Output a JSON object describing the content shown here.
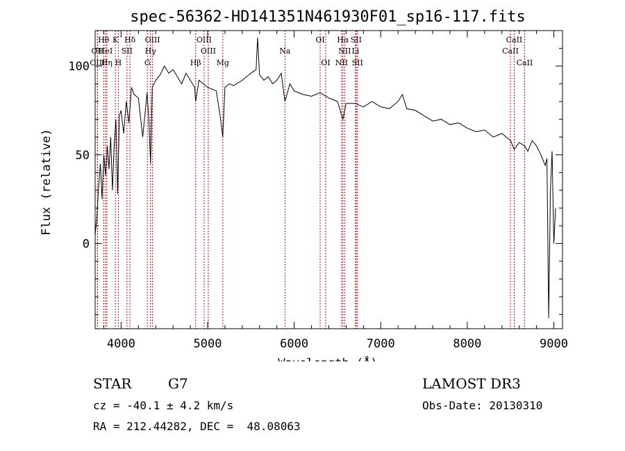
{
  "chart_data": {
    "type": "line",
    "title": "spec-56362-HD141351N461930F01_sp16-117.fits",
    "xlabel": "Wavelength (Å)",
    "ylabel": "Flux (relative)",
    "xlim": [
      3700,
      9100
    ],
    "ylim": [
      -48,
      120
    ],
    "xticks": [
      4000,
      5000,
      6000,
      7000,
      8000,
      9000
    ],
    "yticks": [
      0,
      50,
      100
    ],
    "grid": false,
    "series": [
      {
        "name": "spectrum",
        "x": [
          3700,
          3720,
          3740,
          3760,
          3780,
          3800,
          3820,
          3840,
          3860,
          3880,
          3900,
          3920,
          3940,
          3960,
          3980,
          4000,
          4030,
          4060,
          4090,
          4120,
          4150,
          4200,
          4250,
          4300,
          4320,
          4340,
          4360,
          4400,
          4450,
          4500,
          4550,
          4600,
          4650,
          4700,
          4750,
          4800,
          4850,
          4861,
          4900,
          4950,
          5000,
          5050,
          5100,
          5150,
          5175,
          5200,
          5250,
          5300,
          5400,
          5500,
          5560,
          5577,
          5600,
          5650,
          5700,
          5750,
          5800,
          5850,
          5893,
          5950,
          6000,
          6100,
          6200,
          6300,
          6400,
          6500,
          6563,
          6600,
          6700,
          6800,
          6900,
          7000,
          7100,
          7200,
          7250,
          7300,
          7400,
          7500,
          7600,
          7700,
          7800,
          7900,
          8000,
          8100,
          8200,
          8300,
          8400,
          8500,
          8542,
          8600,
          8662,
          8700,
          8750,
          8800,
          8850,
          8900,
          8920,
          8940,
          8960,
          8980,
          9000,
          9020
        ],
        "values": [
          5,
          15,
          32,
          45,
          25,
          50,
          38,
          55,
          42,
          60,
          30,
          55,
          70,
          28,
          72,
          75,
          62,
          80,
          68,
          88,
          84,
          82,
          60,
          85,
          70,
          45,
          88,
          92,
          95,
          100,
          96,
          98,
          94,
          90,
          96,
          92,
          88,
          80,
          92,
          90,
          88,
          87,
          86,
          70,
          60,
          88,
          90,
          89,
          92,
          96,
          98,
          116,
          95,
          92,
          94,
          90,
          92,
          96,
          80,
          90,
          86,
          84,
          83,
          85,
          82,
          80,
          70,
          79,
          79,
          77,
          80,
          77,
          76,
          80,
          84,
          76,
          75,
          72,
          69,
          70,
          67,
          68,
          65,
          63,
          64,
          60,
          62,
          58,
          53,
          57,
          55,
          52,
          58,
          55,
          50,
          44,
          48,
          -42,
          30,
          52,
          0,
          20
        ]
      }
    ],
    "lines": [
      {
        "name": "OII",
        "wl": 3727,
        "row": 1
      },
      {
        "name": "OIII",
        "wl": 3727,
        "row": 2
      },
      {
        "name": "Hθ",
        "wl": 3798,
        "row": 0
      },
      {
        "name": "HeI",
        "wl": 3820,
        "row": 1
      },
      {
        "name": "Hη",
        "wl": 3835,
        "row": 2
      },
      {
        "name": "K",
        "wl": 3934,
        "row": 0
      },
      {
        "name": "H",
        "wl": 3968,
        "row": 2
      },
      {
        "name": "SII",
        "wl": 4068,
        "row": 1
      },
      {
        "name": "Hδ",
        "wl": 4102,
        "row": 0
      },
      {
        "name": "OIII",
        "wl": 4363,
        "row": 0
      },
      {
        "name": "Hγ",
        "wl": 4340,
        "row": 1
      },
      {
        "name": "G",
        "wl": 4304,
        "row": 2
      },
      {
        "name": "Hβ",
        "wl": 4861,
        "row": 2
      },
      {
        "name": "OIII",
        "wl": 4959,
        "row": 0
      },
      {
        "name": "OIII",
        "wl": 5007,
        "row": 1
      },
      {
        "name": "Mg",
        "wl": 5175,
        "row": 2
      },
      {
        "name": "Na",
        "wl": 5893,
        "row": 1
      },
      {
        "name": "OI",
        "wl": 6300,
        "row": 0
      },
      {
        "name": "OI",
        "wl": 6364,
        "row": 2
      },
      {
        "name": "Hα",
        "wl": 6563,
        "row": 0
      },
      {
        "name": "NII",
        "wl": 6583,
        "row": 1
      },
      {
        "name": "NII",
        "wl": 6548,
        "row": 2
      },
      {
        "name": "SII",
        "wl": 6716,
        "row": 0
      },
      {
        "name": "Li",
        "wl": 6708,
        "row": 1
      },
      {
        "name": "SII",
        "wl": 6731,
        "row": 2
      },
      {
        "name": "CaII",
        "wl": 8542,
        "row": 0
      },
      {
        "name": "CaII",
        "wl": 8498,
        "row": 1
      },
      {
        "name": "CaII",
        "wl": 8662,
        "row": 2
      }
    ]
  },
  "info": {
    "class": "STAR",
    "subclass": "G7",
    "survey": "LAMOST DR3",
    "cz": "cz = -40.1 ± 4.2 km/s",
    "obsdate": "Obs-Date: 20130310",
    "radec": "RA = 212.44282, DEC =  48.08063"
  },
  "colors": {
    "line_marker": "#c00000",
    "spectrum": "#000000"
  }
}
